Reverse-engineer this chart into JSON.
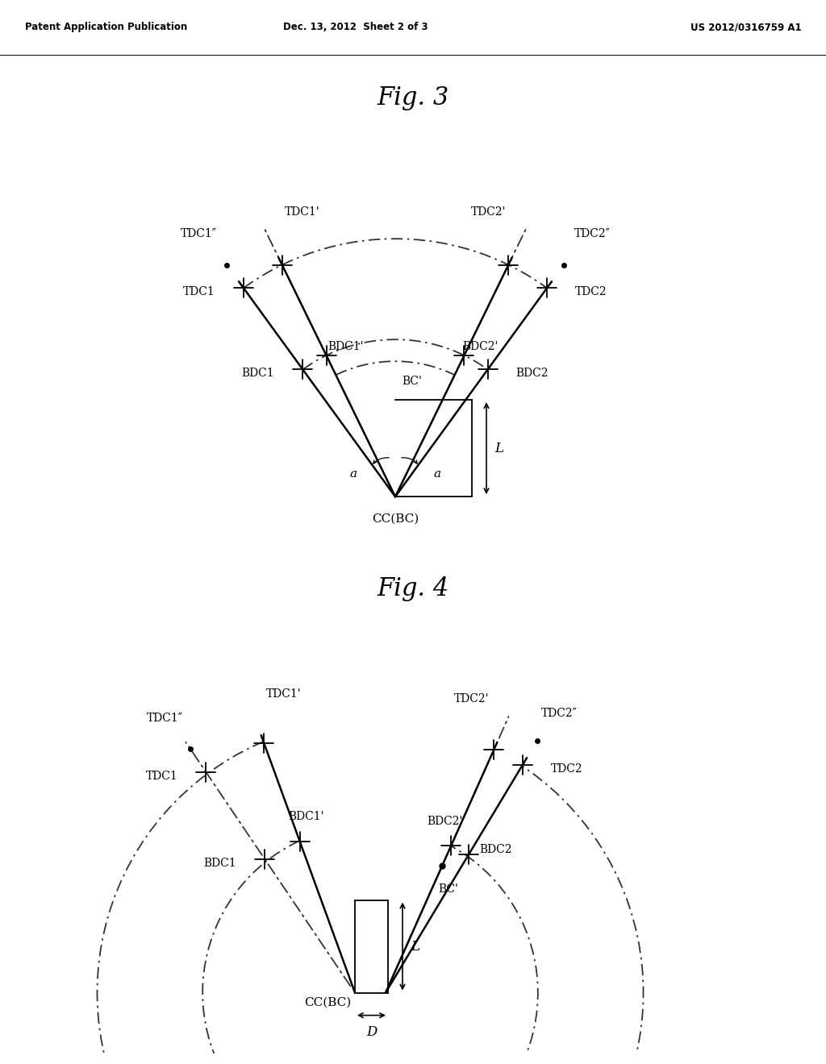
{
  "header_left": "Patent Application Publication",
  "header_mid": "Dec. 13, 2012  Sheet 2 of 3",
  "header_right": "US 2012/0316759 A1",
  "fig3_title": "Fig. 3",
  "fig4_title": "Fig. 4",
  "background": "#ffffff"
}
